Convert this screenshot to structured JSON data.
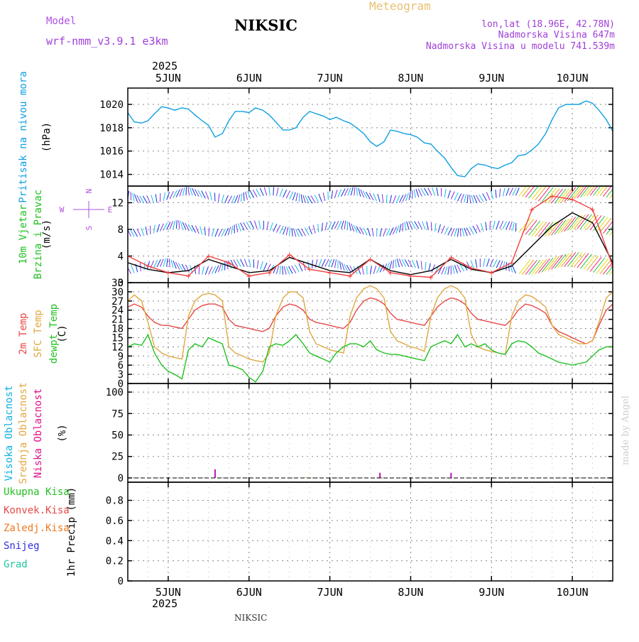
{
  "header": {
    "model_label": "Model",
    "model_name": "wrf-nmm_v3.9.1 e3km",
    "station": "NIKSIC",
    "title": "Meteogram",
    "coords": "lon,lat (18.96E, 42.78N)",
    "altitude": "Nadmorska Visina 647m",
    "model_altitude": "Nadmorska Visina u modelu 741.539m",
    "year_top": "2025",
    "year_bottom": "2025",
    "footer_station": "NIKSIC",
    "credit": "made by Angel",
    "colors": {
      "model": "#b050e0",
      "title": "#e8c070",
      "info": "#a040d8"
    }
  },
  "time_axis": {
    "start": 4.5,
    "end": 10.5,
    "day_labels": [
      "5JUN",
      "6JUN",
      "7JUN",
      "8JUN",
      "9JUN",
      "10JUN"
    ],
    "day_positions": [
      5,
      6,
      7,
      8,
      9,
      10
    ]
  },
  "chart_data": [
    {
      "type": "line",
      "id": "pressure",
      "labels": [
        {
          "text": "Pritisak na nivou mora",
          "color": "#10a0e0"
        }
      ],
      "ylabel": "(hPa)",
      "ylim": [
        1013,
        1021.4
      ],
      "yticks": [
        1014,
        1016,
        1018,
        1020
      ],
      "grid": true,
      "series": [
        {
          "name": "Pritisak na nivou mora",
          "color": "#10a0e0",
          "x": [
            4.5,
            4.58,
            4.67,
            4.75,
            4.83,
            4.92,
            5.0,
            5.08,
            5.17,
            5.25,
            5.33,
            5.42,
            5.5,
            5.58,
            5.67,
            5.75,
            5.83,
            5.92,
            6.0,
            6.08,
            6.17,
            6.25,
            6.33,
            6.42,
            6.5,
            6.58,
            6.67,
            6.75,
            6.83,
            6.92,
            7.0,
            7.08,
            7.17,
            7.25,
            7.33,
            7.42,
            7.5,
            7.58,
            7.67,
            7.75,
            7.83,
            7.92,
            8.0,
            8.08,
            8.17,
            8.25,
            8.33,
            8.42,
            8.5,
            8.58,
            8.67,
            8.75,
            8.83,
            8.92,
            9.0,
            9.08,
            9.17,
            9.25,
            9.33,
            9.42,
            9.5,
            9.58,
            9.67,
            9.75,
            9.83,
            9.92,
            10.0,
            10.08,
            10.17,
            10.25,
            10.33,
            10.42,
            10.5
          ],
          "values": [
            1019.3,
            1018.5,
            1018.4,
            1018.6,
            1019.2,
            1019.8,
            1019.7,
            1019.5,
            1019.7,
            1019.6,
            1019.1,
            1018.6,
            1018.2,
            1017.2,
            1017.5,
            1018.6,
            1019.4,
            1019.4,
            1019.3,
            1019.7,
            1019.5,
            1019.1,
            1018.5,
            1017.8,
            1017.8,
            1018.0,
            1018.9,
            1019.4,
            1019.2,
            1019.0,
            1018.7,
            1018.9,
            1018.6,
            1018.4,
            1018.0,
            1017.5,
            1016.8,
            1016.4,
            1016.8,
            1017.8,
            1017.7,
            1017.5,
            1017.4,
            1017.2,
            1016.7,
            1016.6,
            1016.0,
            1015.4,
            1014.6,
            1013.9,
            1013.8,
            1014.5,
            1014.9,
            1014.8,
            1014.6,
            1014.5,
            1014.8,
            1015.0,
            1015.6,
            1015.7,
            1016.1,
            1016.6,
            1017.5,
            1018.7,
            1019.7,
            1020.0,
            1020.0,
            1020.0,
            1020.3,
            1020.1,
            1019.5,
            1018.7,
            1017.7
          ]
        }
      ]
    },
    {
      "type": "line",
      "id": "wind",
      "labels": [
        {
          "text": "10m Vjetar",
          "color": "#20c020"
        },
        {
          "text": "Brzina i Pravac",
          "color": "#20c020"
        }
      ],
      "ylabel": "(m/s)",
      "ylim": [
        0,
        14.5
      ],
      "yticks": [
        0,
        4,
        8,
        12
      ],
      "grid": true,
      "compass": {
        "north": "N",
        "west": "W",
        "east": "E",
        "south": "S",
        "color": "#b050e0"
      },
      "barb_levels": [
        12.5,
        7.5,
        1.8
      ],
      "barb_colors": [
        "#1030e0",
        "#8030e0",
        "#10c0e0",
        "#30c040",
        "#e0e010",
        "#f0a020",
        "#f02080"
      ],
      "series": [
        {
          "name": "Brzina (crna)",
          "color": "#000000",
          "x": [
            4.5,
            4.75,
            5.0,
            5.25,
            5.5,
            5.75,
            6.0,
            6.25,
            6.5,
            6.75,
            7.0,
            7.25,
            7.5,
            7.75,
            8.0,
            8.25,
            8.5,
            8.75,
            9.0,
            9.25,
            9.5,
            9.75,
            10.0,
            10.25,
            10.5
          ],
          "values": [
            3.0,
            2.0,
            1.5,
            1.8,
            3.5,
            2.5,
            1.5,
            1.8,
            3.8,
            2.8,
            1.8,
            1.5,
            3.5,
            1.8,
            1.2,
            1.8,
            3.5,
            2.0,
            1.5,
            2.5,
            5.5,
            8.5,
            10.5,
            9.0,
            3.0
          ]
        },
        {
          "name": "Udari",
          "color": "#f04040",
          "x": [
            4.5,
            4.75,
            5.0,
            5.25,
            5.5,
            5.75,
            6.0,
            6.25,
            6.5,
            6.75,
            7.0,
            7.25,
            7.5,
            7.75,
            8.0,
            8.25,
            8.5,
            8.75,
            9.0,
            9.25,
            9.5,
            9.75,
            10.0,
            10.25,
            10.5
          ],
          "values": [
            4.0,
            2.5,
            1.5,
            1.0,
            4.0,
            3.0,
            1.0,
            1.5,
            4.2,
            2.0,
            1.5,
            1.0,
            3.5,
            1.5,
            1.0,
            0.8,
            3.8,
            2.2,
            1.5,
            3.0,
            11.0,
            13.0,
            12.5,
            11.0,
            2.5
          ]
        }
      ]
    },
    {
      "type": "line",
      "id": "temperature",
      "labels": [
        {
          "text": "2m Temp",
          "color": "#e84848"
        },
        {
          "text": "SFC Temp",
          "color": "#e0a840"
        },
        {
          "text": "dewpt Temp",
          "color": "#20c020"
        }
      ],
      "ylabel": "(C)",
      "ylim": [
        0,
        33
      ],
      "yticks": [
        0,
        3,
        6,
        9,
        12,
        15,
        18,
        21,
        24,
        27,
        30,
        33
      ],
      "grid": true,
      "series": [
        {
          "name": "2m Temp",
          "color": "#e84848",
          "x": [
            4.5,
            4.58,
            4.67,
            4.75,
            4.83,
            4.92,
            5.0,
            5.08,
            5.17,
            5.25,
            5.33,
            5.42,
            5.5,
            5.58,
            5.67,
            5.75,
            5.83,
            5.92,
            6.0,
            6.08,
            6.17,
            6.25,
            6.33,
            6.42,
            6.5,
            6.58,
            6.67,
            6.75,
            6.83,
            6.92,
            7.0,
            7.08,
            7.17,
            7.25,
            7.33,
            7.42,
            7.5,
            7.58,
            7.67,
            7.75,
            7.83,
            7.92,
            8.0,
            8.08,
            8.17,
            8.25,
            8.33,
            8.42,
            8.5,
            8.58,
            8.67,
            8.75,
            8.83,
            8.92,
            9.0,
            9.08,
            9.17,
            9.25,
            9.33,
            9.42,
            9.5,
            9.58,
            9.67,
            9.75,
            9.83,
            9.92,
            10.0,
            10.08,
            10.17,
            10.25,
            10.33,
            10.42,
            10.5
          ],
          "values": [
            25,
            26,
            25,
            22,
            20,
            19,
            19,
            18.5,
            18,
            21,
            24,
            25.5,
            26,
            26,
            25,
            21,
            19,
            18.5,
            18,
            17.5,
            17,
            18,
            22,
            25,
            26,
            25.5,
            24,
            21,
            20,
            19.5,
            19,
            18.5,
            18,
            20,
            24,
            27,
            28,
            27.5,
            26,
            23,
            21,
            20.5,
            20,
            19.5,
            19,
            22,
            25,
            27,
            28,
            27.5,
            26,
            23,
            21,
            20.5,
            20,
            19.5,
            19,
            21,
            24,
            26,
            25.5,
            24.5,
            23,
            19,
            17,
            16,
            15,
            14,
            13,
            14,
            19,
            24,
            26
          ]
        },
        {
          "name": "SFC Temp",
          "color": "#e0a840",
          "x": [
            4.5,
            4.58,
            4.67,
            4.75,
            4.83,
            4.92,
            5.0,
            5.08,
            5.17,
            5.25,
            5.33,
            5.42,
            5.5,
            5.58,
            5.67,
            5.75,
            5.83,
            5.92,
            6.0,
            6.08,
            6.17,
            6.25,
            6.33,
            6.42,
            6.5,
            6.58,
            6.67,
            6.75,
            6.83,
            6.92,
            7.0,
            7.08,
            7.17,
            7.25,
            7.33,
            7.42,
            7.5,
            7.58,
            7.67,
            7.75,
            7.83,
            7.92,
            8.0,
            8.08,
            8.17,
            8.25,
            8.33,
            8.42,
            8.5,
            8.58,
            8.67,
            8.75,
            8.83,
            8.92,
            9.0,
            9.08,
            9.17,
            9.25,
            9.33,
            9.42,
            9.5,
            9.58,
            9.67,
            9.75,
            9.83,
            9.92,
            10.0,
            10.08,
            10.17,
            10.25,
            10.33,
            10.42,
            10.5
          ],
          "values": [
            27,
            29,
            27,
            20,
            12,
            10,
            9,
            8.5,
            8,
            22,
            27,
            29,
            29.5,
            29,
            27,
            12,
            10,
            9,
            8,
            7.5,
            7,
            10,
            22,
            28,
            30,
            30,
            28,
            17,
            13,
            12,
            11,
            10.5,
            10,
            22,
            28,
            31,
            32,
            31,
            28,
            17,
            14,
            13,
            12,
            11.5,
            10.5,
            22,
            28,
            31,
            32,
            31,
            28,
            16,
            12,
            11,
            10.5,
            10,
            9.5,
            22,
            27,
            29,
            28.5,
            27,
            25,
            19,
            16,
            15,
            14,
            13,
            13,
            14,
            20,
            28,
            30
          ]
        },
        {
          "name": "dewpt Temp",
          "color": "#20c020",
          "x": [
            4.5,
            4.58,
            4.67,
            4.75,
            4.83,
            4.92,
            5.0,
            5.08,
            5.17,
            5.25,
            5.33,
            5.42,
            5.5,
            5.58,
            5.67,
            5.75,
            5.83,
            5.92,
            6.0,
            6.08,
            6.17,
            6.25,
            6.33,
            6.42,
            6.5,
            6.58,
            6.67,
            6.75,
            6.83,
            6.92,
            7.0,
            7.08,
            7.17,
            7.25,
            7.33,
            7.42,
            7.5,
            7.58,
            7.67,
            7.75,
            7.83,
            7.92,
            8.0,
            8.08,
            8.17,
            8.25,
            8.33,
            8.42,
            8.5,
            8.58,
            8.67,
            8.75,
            8.83,
            8.92,
            9.0,
            9.08,
            9.17,
            9.25,
            9.33,
            9.42,
            9.5,
            9.58,
            9.67,
            9.75,
            9.83,
            9.92,
            10.0,
            10.08,
            10.17,
            10.25,
            10.33,
            10.42,
            10.5
          ],
          "values": [
            12,
            13,
            12.5,
            16,
            10,
            6,
            4,
            3,
            1.5,
            11,
            13,
            12,
            15,
            14,
            13,
            6,
            5.5,
            4.5,
            2,
            0.5,
            4,
            12,
            13,
            12.5,
            14,
            16,
            13,
            10,
            9,
            8,
            7,
            10,
            12,
            13,
            13,
            12,
            14,
            11,
            10,
            9.5,
            9.5,
            9,
            8.5,
            8,
            7.5,
            12,
            13,
            14,
            13,
            16,
            12,
            13,
            12,
            13,
            11,
            10,
            9.5,
            13,
            14,
            13.5,
            12,
            10,
            9,
            8,
            7,
            6.5,
            6,
            6.5,
            7,
            9,
            11,
            12,
            12
          ]
        }
      ]
    },
    {
      "type": "bar",
      "id": "clouds",
      "labels": [
        {
          "text": "Visoka Oblacnost",
          "color": "#10b0e0"
        },
        {
          "text": "Srednja Oblacnost",
          "color": "#e0a840"
        },
        {
          "text": "Niska Oblacnost",
          "color": "#e0108a"
        }
      ],
      "ylabel": "(%)",
      "ylim": [
        -5,
        110
      ],
      "yticks": [
        0,
        25,
        50,
        75,
        100
      ],
      "grid": true,
      "series": [
        {
          "name": "Niska Oblacnost",
          "color": "#c010c0",
          "x": [
            5.58,
            7.62,
            8.5
          ],
          "values": [
            10,
            6,
            6
          ]
        },
        {
          "name": "Srednja Oblacnost",
          "color": "#e0a840",
          "x": [
            6.7,
            7.6
          ],
          "values": [
            1,
            1
          ]
        }
      ]
    },
    {
      "type": "bar",
      "id": "precip",
      "labels": [
        {
          "text": "Ukupna Kisa",
          "color": "#20c020"
        },
        {
          "text": "Konvek.Kisa",
          "color": "#e84848"
        },
        {
          "text": "Zaledj.Kisa",
          "color": "#f07820"
        },
        {
          "text": "Snijeg",
          "color": "#3030e0"
        },
        {
          "text": "Grad",
          "color": "#20c8a0"
        }
      ],
      "ylabel": "1hr Precip (mm)",
      "ylim": [
        0,
        0.98
      ],
      "yticks": [
        0,
        0.2,
        0.4,
        0.6,
        0.8
      ],
      "grid": true,
      "series": [
        {
          "name": "Ukupna Kisa",
          "color": "#20c020",
          "x": [],
          "values": []
        }
      ]
    }
  ]
}
